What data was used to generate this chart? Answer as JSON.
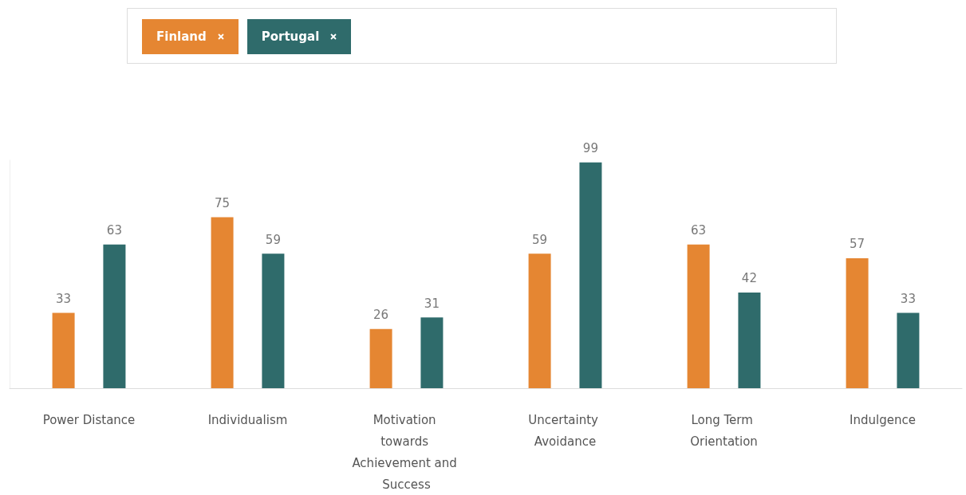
{
  "chart_data": {
    "type": "bar",
    "categories": [
      "Power Distance",
      "Individualism",
      "Motivation towards Achievement and Success",
      "Uncertainty Avoidance",
      "Long Term Orientation",
      "Indulgence"
    ],
    "series": [
      {
        "name": "Finland",
        "color": "#e58632",
        "values": [
          33,
          75,
          26,
          59,
          63,
          57
        ]
      },
      {
        "name": "Portugal",
        "color": "#2f6b6b",
        "values": [
          63,
          59,
          31,
          99,
          42,
          33
        ]
      }
    ],
    "data_labels": true,
    "legend": "top left",
    "grid": false,
    "tick_labels": "x"
  }
}
